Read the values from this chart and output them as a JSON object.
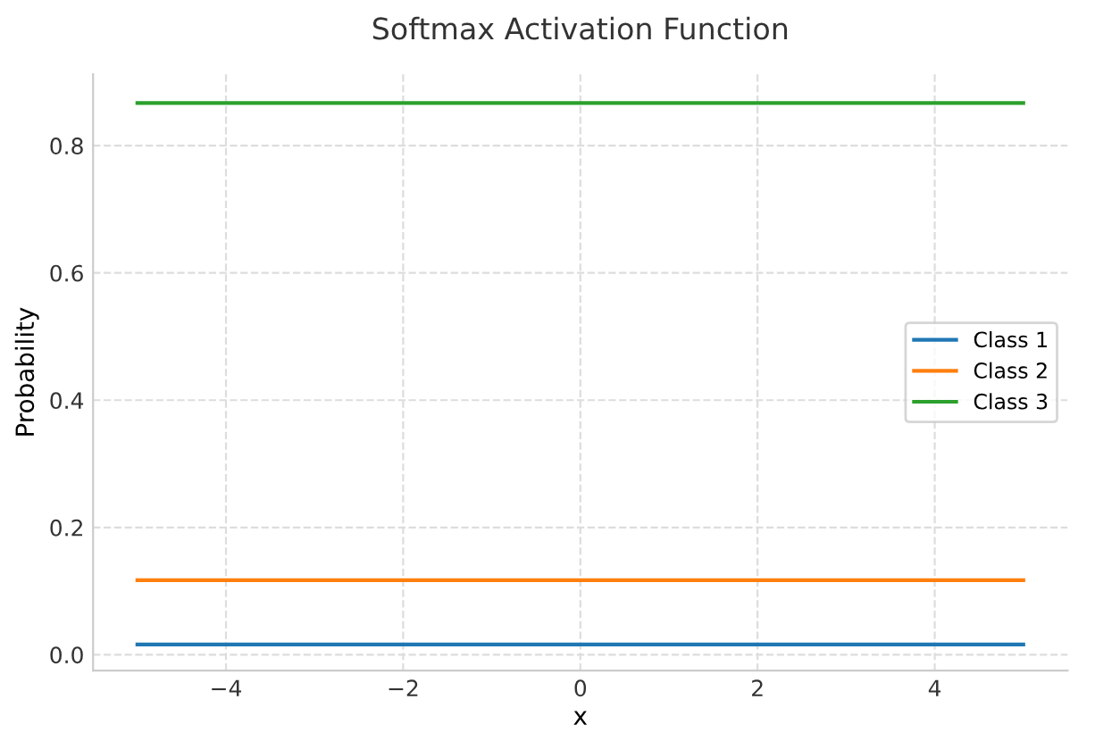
{
  "chart_data": {
    "type": "line",
    "title": "Softmax Activation Function",
    "xlabel": "x",
    "ylabel": "Probability",
    "x": [
      -5,
      5
    ],
    "series": [
      {
        "name": "Class 1",
        "color": "#1f77b4",
        "values": [
          0.016,
          0.016
        ]
      },
      {
        "name": "Class 2",
        "color": "#ff7f0e",
        "values": [
          0.117,
          0.117
        ]
      },
      {
        "name": "Class 3",
        "color": "#2ca02c",
        "values": [
          0.867,
          0.867
        ]
      }
    ],
    "xlim": [
      -5.5,
      5.5
    ],
    "ylim": [
      -0.025,
      0.9125
    ],
    "xticks": [
      {
        "value": -4,
        "label": "−4"
      },
      {
        "value": -2,
        "label": "−2"
      },
      0,
      2,
      4
    ],
    "yticks": [
      {
        "value": 0,
        "label": "0.0"
      },
      0.2,
      0.4,
      0.6,
      0.8
    ],
    "grid": true,
    "legend": "right",
    "marker": "none",
    "line_style": "solid"
  }
}
